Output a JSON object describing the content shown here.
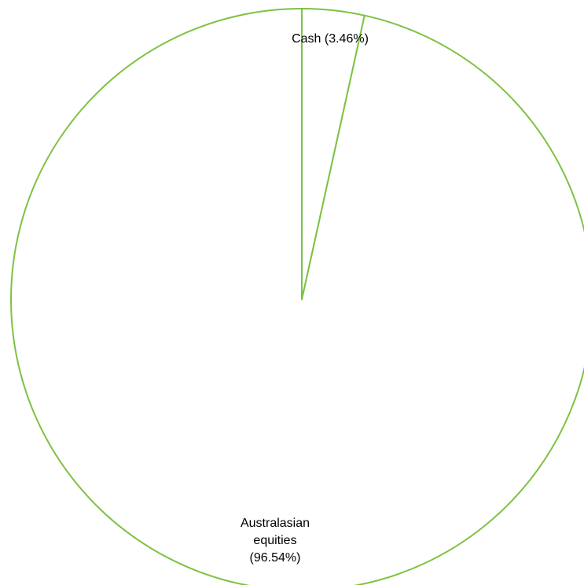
{
  "chart_data": {
    "type": "pie",
    "title": "",
    "legend": "none",
    "series_color": "#7dc242",
    "slices": [
      {
        "name": "Cash",
        "value": 3.46,
        "label_lines": [
          "Cash (3.46%)"
        ]
      },
      {
        "name": "Australasian equities",
        "value": 96.54,
        "label_lines": [
          "Australasian",
          "equities",
          "(96.54%)"
        ]
      }
    ]
  }
}
